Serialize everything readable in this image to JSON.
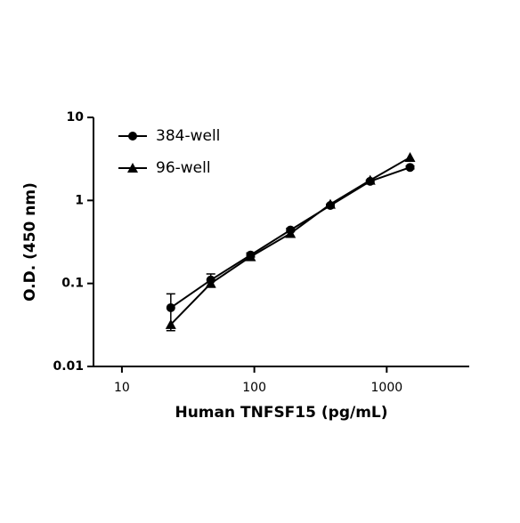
{
  "chart_data": {
    "type": "line",
    "xlabel": "Human TNFSF15 (pg/mL)",
    "ylabel": "O.D. (450 nm)",
    "x": [
      23.4,
      46.9,
      93.75,
      187.5,
      375,
      750,
      1500
    ],
    "series": [
      {
        "name": "384-well",
        "color": "#000000",
        "marker": "circle",
        "values": [
          0.051,
          0.11,
          0.22,
          0.44,
          0.87,
          1.7,
          2.5
        ],
        "errors": [
          0.024,
          0.02,
          0.012,
          0.02,
          0.03,
          0.05,
          0.1
        ]
      },
      {
        "name": "96-well",
        "color": "#000000",
        "marker": "triangle",
        "values": [
          0.032,
          0.1,
          0.21,
          0.4,
          0.9,
          1.75,
          3.3
        ]
      }
    ],
    "xscale": "log",
    "yscale": "log",
    "xlim": [
      6.1,
      4200
    ],
    "ylim": [
      0.01,
      10
    ],
    "xticks": [
      10,
      100,
      1000
    ],
    "yticks": [
      0.01,
      0.1,
      1,
      10
    ],
    "legend": "upper left"
  }
}
